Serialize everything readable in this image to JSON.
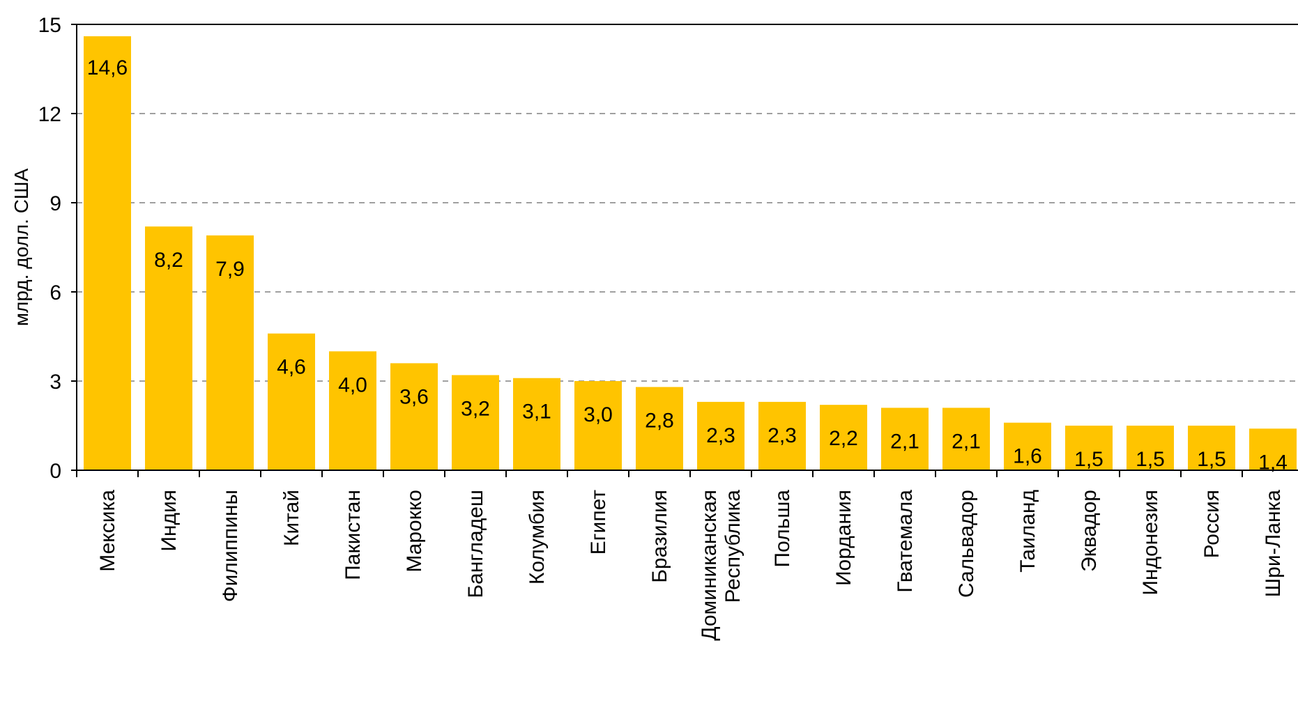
{
  "chart_data": {
    "type": "bar",
    "title": "",
    "xlabel": "",
    "ylabel": "млрд. долл. США",
    "ylim": [
      0,
      15
    ],
    "yticks": [
      0,
      3,
      6,
      9,
      12,
      15
    ],
    "grid": true,
    "bar_color": "#FFC400",
    "categories": [
      "Мексика",
      "Индия",
      "Филиппины",
      "Китай",
      "Пакистан",
      "Марокко",
      "Бангладеш",
      "Колумбия",
      "Египет",
      "Бразилия",
      [
        "Доминиканская",
        "Республика"
      ],
      "Польша",
      "Иордания",
      "Гватемала",
      "Сальвадор",
      "Таиланд",
      "Эквадор",
      "Индонезия",
      "Россия",
      "Шри-Ланка"
    ],
    "values": [
      14.6,
      8.2,
      7.9,
      4.6,
      4.0,
      3.6,
      3.2,
      3.1,
      3.0,
      2.8,
      2.3,
      2.3,
      2.2,
      2.1,
      2.1,
      1.6,
      1.5,
      1.5,
      1.5,
      1.4
    ],
    "value_labels": [
      "14,6",
      "8,2",
      "7,9",
      "4,6",
      "4,0",
      "3,6",
      "3,2",
      "3,1",
      "3,0",
      "2,8",
      "2,3",
      "2,3",
      "2,2",
      "2,1",
      "2,1",
      "1,6",
      "1,5",
      "1,5",
      "1,5",
      "1,4"
    ]
  }
}
